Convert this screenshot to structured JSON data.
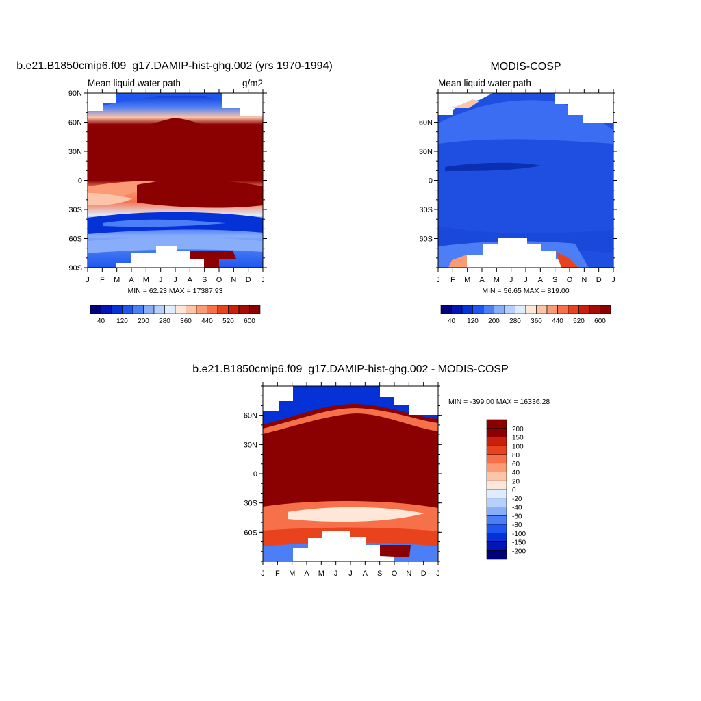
{
  "colors": {
    "map_fill_dark_red": "#8b0000",
    "map_fill_blue": "#1f4fe0",
    "map_fill_navy": "#0a2fb0",
    "missing": "#ffffff",
    "levels_abs": [
      "#00007a",
      "#0015b3",
      "#0532d6",
      "#1f56f0",
      "#4c7ff5",
      "#88aefa",
      "#b6cffb",
      "#deecfd",
      "#fde7d8",
      "#fcc4a8",
      "#fb9b76",
      "#f6704a",
      "#e9431d",
      "#c8200c",
      "#a80b06",
      "#8b0000"
    ],
    "levels_diff": [
      "#00007a",
      "#0015b3",
      "#0532d6",
      "#1f56f0",
      "#4c7ff5",
      "#88aefa",
      "#b6cffb",
      "#deecfd",
      "#fde7d8",
      "#fcc4a8",
      "#fb9b76",
      "#f6704a",
      "#e9431d",
      "#c8200c",
      "#8b0000"
    ]
  },
  "chart_data": [
    {
      "type": "heatmap",
      "title": "b.e21.B1850cmip6.f09_g17.DAMIP-hist-ghg.002 (yrs 1970-1994)",
      "left_label": "Mean liquid water path",
      "right_label": "g/m2",
      "x_tick_labels": [
        "J",
        "F",
        "M",
        "A",
        "M",
        "J",
        "J",
        "A",
        "S",
        "O",
        "N",
        "D",
        "J"
      ],
      "y_tick_labels": [
        "90N",
        "60N",
        "30N",
        "0",
        "30S",
        "60S",
        "90S"
      ],
      "y_range": [
        -90,
        90
      ],
      "stats": "MIN =  62.23 MAX = 17387.93",
      "colorbar_labels": [
        "40",
        "120",
        "200",
        "280",
        "360",
        "440",
        "520",
        "600"
      ],
      "colorbar_levels": [
        20,
        40,
        80,
        120,
        160,
        200,
        240,
        280,
        320,
        360,
        400,
        440,
        480,
        520,
        560,
        600
      ]
    },
    {
      "type": "heatmap",
      "title": "MODIS-COSP",
      "left_label": "Mean liquid water path",
      "x_tick_labels": [
        "J",
        "F",
        "M",
        "A",
        "M",
        "J",
        "J",
        "A",
        "S",
        "O",
        "N",
        "D",
        "J"
      ],
      "y_tick_labels": [
        "60N",
        "30N",
        "0",
        "30S",
        "60S"
      ],
      "y_range": [
        -90,
        90
      ],
      "stats": "MIN =  56.65 MAX = 819.00",
      "colorbar_labels": [
        "40",
        "120",
        "200",
        "280",
        "360",
        "440",
        "520",
        "600"
      ],
      "colorbar_levels": [
        20,
        40,
        80,
        120,
        160,
        200,
        240,
        280,
        320,
        360,
        400,
        440,
        480,
        520,
        560,
        600
      ]
    },
    {
      "type": "heatmap",
      "title": "b.e21.B1850cmip6.f09_g17.DAMIP-hist-ghg.002 - MODIS-COSP",
      "x_tick_labels": [
        "J",
        "F",
        "M",
        "A",
        "M",
        "J",
        "J",
        "A",
        "S",
        "O",
        "N",
        "D",
        "J"
      ],
      "y_tick_labels": [
        "60N",
        "30N",
        "0",
        "30S",
        "60S"
      ],
      "y_range": [
        -90,
        90
      ],
      "stats": "MIN = -399.00 MAX = 16336.28",
      "colorbar_labels": [
        "200",
        "150",
        "100",
        "80",
        "60",
        "40",
        "20",
        "0",
        "-20",
        "-40",
        "-60",
        "-80",
        "-100",
        "-150",
        "-200"
      ]
    }
  ]
}
